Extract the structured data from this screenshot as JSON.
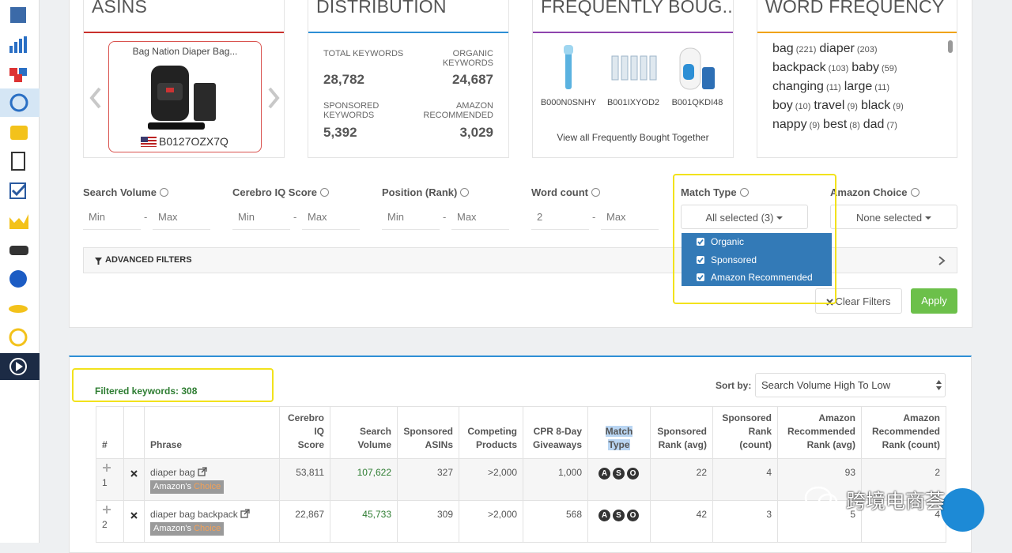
{
  "cards": {
    "asins": {
      "title": "ASINS",
      "product_name": "Bag Nation Diaper Bag...",
      "asin": "B0127OZX7Q"
    },
    "distribution": {
      "title": "DISTRIBUTION",
      "stats": [
        {
          "label": "TOTAL KEYWORDS",
          "value": "28,782"
        },
        {
          "label": "ORGANIC KEYWORDS",
          "value": "24,687"
        },
        {
          "label": "SPONSORED KEYWORDS",
          "value": "5,392"
        },
        {
          "label": "AMAZON RECOMMENDED",
          "value": "3,029"
        }
      ]
    },
    "frequently_bought": {
      "title": "FREQUENTLY BOUG...",
      "products": [
        "B000N0SNHY",
        "B001IXYOD2",
        "B001QKDI48"
      ],
      "link": "View all Frequently Bought Together"
    },
    "word_frequency": {
      "title": "WORD FREQUENCY",
      "words": [
        {
          "word": "bag",
          "count": "(221)"
        },
        {
          "word": "diaper",
          "count": "(203)"
        },
        {
          "word": "backpack",
          "count": "(103)"
        },
        {
          "word": "baby",
          "count": "(59)"
        },
        {
          "word": "changing",
          "count": "(11)"
        },
        {
          "word": "large",
          "count": "(11)"
        },
        {
          "word": "boy",
          "count": "(10)"
        },
        {
          "word": "travel",
          "count": "(9)"
        },
        {
          "word": "black",
          "count": "(9)"
        },
        {
          "word": "nappy",
          "count": "(9)"
        },
        {
          "word": "best",
          "count": "(8)"
        },
        {
          "word": "dad",
          "count": "(7)"
        }
      ]
    }
  },
  "filters": {
    "separator": "-",
    "fields": [
      {
        "label": "Search Volume",
        "min": "Min",
        "max": "Max"
      },
      {
        "label": "Cerebro IQ Score",
        "min": "Min",
        "max": "Max"
      },
      {
        "label": "Position (Rank)",
        "min": "Min",
        "max": "Max"
      },
      {
        "label": "Word count",
        "min": "2",
        "max": "Max"
      }
    ],
    "match_type": {
      "label": "Match Type",
      "value": "All selected (3)",
      "options": [
        "Organic",
        "Sponsored",
        "Amazon Recommended"
      ]
    },
    "amazon_choice": {
      "label": "Amazon Choice",
      "value": "None selected"
    },
    "advanced": "ADVANCED FILTERS",
    "clear": "Clear Filters",
    "apply": "Apply"
  },
  "results": {
    "filtered": "Filtered keywords: 308",
    "sort_label": "Sort by:",
    "sort_value": "Search Volume High To Low",
    "table": {
      "headers": [
        "#",
        "Phrase",
        "Cerebro IQ Score",
        "Search Volume",
        "Sponsored ASINs",
        "Competing Products",
        "CPR 8-Day Giveaways",
        "Match Type",
        "Sponsored Rank (avg)",
        "Sponsored Rank (count)",
        "Amazon Recommended Rank (avg)",
        "Amazon Recommended Rank (count)"
      ],
      "rows": [
        {
          "index": "1",
          "phrase": "diaper bag",
          "badge": {
            "amazon": "Amazon's",
            "choice": "Choice"
          },
          "cells": [
            "53,811",
            "107,622",
            "327",
            ">2,000",
            "1,000"
          ],
          "match": [
            "A",
            "S",
            "O"
          ],
          "ranks": [
            "22",
            "4",
            "93",
            "2"
          ]
        },
        {
          "index": "2",
          "phrase": "diaper bag backpack",
          "badge": {
            "amazon": "Amazon's",
            "choice": "Choice"
          },
          "cells": [
            "22,867",
            "45,733",
            "309",
            ">2,000",
            "568"
          ],
          "match": [
            "A",
            "S",
            "O"
          ],
          "ranks": [
            "42",
            "3",
            "5",
            "4"
          ]
        }
      ]
    }
  },
  "watermark": "跨境电商荟"
}
